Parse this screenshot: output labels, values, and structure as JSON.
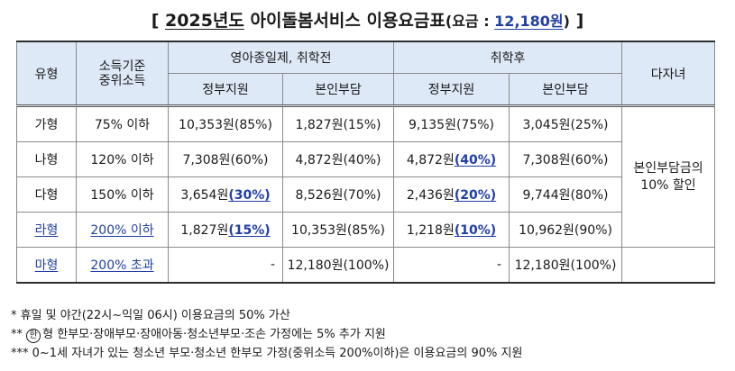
{
  "title": {
    "bracket_open": "[",
    "year": "2025년도",
    "main": " 아이돌봄서비스 이용요금표",
    "fee_prefix": "(요금 : ",
    "fee_value": "12,180원",
    "fee_suffix": ")",
    "bracket_close": "]"
  },
  "headers": {
    "type": "유형",
    "income": "소득기준",
    "income2": "중위소득",
    "group_infant": "영아종일제, 취학전",
    "group_school": "취학후",
    "multi_child": "다자녀",
    "gov_support": "정부지원",
    "self_pay": "본인부담"
  },
  "rows": [
    {
      "type": "가형",
      "income": "75% 이하",
      "c1": "10,353원(85%)",
      "c2": "1,827원(15%)",
      "c3": "9,135원(75%)",
      "c4": "3,045원(25%)"
    },
    {
      "type": "나형",
      "income": "120% 이하",
      "c1": "7,308원(60%)",
      "c2": "4,872원(40%)",
      "c3_amt": "4,872원",
      "c3_pct": "(40%)",
      "c4": "7,308원(60%)"
    },
    {
      "type": "다형",
      "income": "150% 이하",
      "c1_amt": "3,654원",
      "c1_pct": "(30%)",
      "c2": "8,526원(70%)",
      "c3_amt": "2,436원",
      "c3_pct": "(20%)",
      "c4": "9,744원(80%)"
    },
    {
      "type": "라형",
      "income": "200% 이하",
      "c1_amt": "1,827원",
      "c1_pct": "(15%)",
      "c2": "10,353원(85%)",
      "c3_amt": "1,218원",
      "c3_pct": "(10%)",
      "c4": "10,962원(90%)"
    },
    {
      "type": "마형",
      "income": "200% 초과",
      "c1": "-",
      "c2": "12,180원(100%)",
      "c3": "-",
      "c4": "12,180원(100%)"
    }
  ],
  "multi_child_note": {
    "line1": "본인부담금의",
    "line2": "10% 할인"
  },
  "notes": {
    "n1": "* 휴일 및 야간(22시~익일 06시) 이용요금의 50% 가산",
    "n2_prefix": "** ",
    "n2_circle": "한",
    "n2_text": "형 한부모·장애부모·장애아동·청소년부모·조손 가정에는 5% 추가 지원",
    "n3": "*** 0~1세 자녀가 있는 청소년 부모·청소년 한부모 가정(중위소득 200%이하)은 이용요금의 90% 지원"
  }
}
